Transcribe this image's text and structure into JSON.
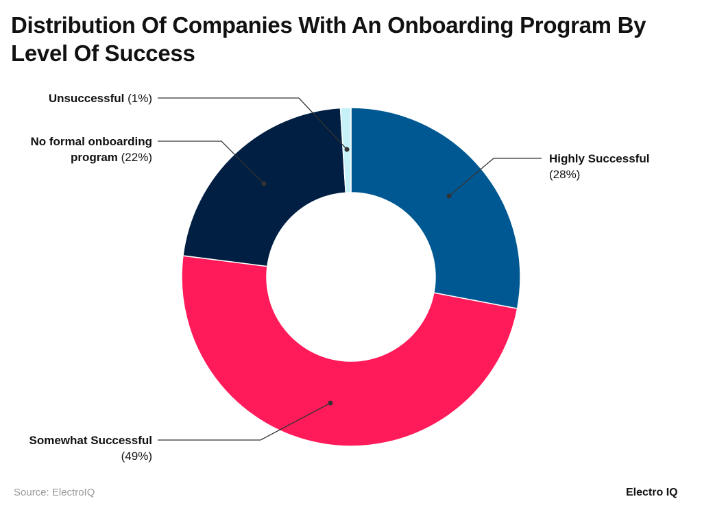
{
  "chart_data": {
    "type": "pie",
    "donut": true,
    "title": "Distribution Of Companies With An Onboarding Program By Level Of Success",
    "slices": [
      {
        "label": "Highly Successful",
        "value": 28,
        "value_label": "(28%)",
        "color": "#005892"
      },
      {
        "label": "Somewhat Successful",
        "value": 49,
        "value_label": "(49%)",
        "color": "#FF1B5A"
      },
      {
        "label": "No formal onboarding program",
        "value": 22,
        "value_label": "(22%)",
        "color": "#001F42"
      },
      {
        "label": "Unsuccessful",
        "value": 1,
        "value_label": "(1%)",
        "color": "#C6F1F9"
      }
    ],
    "legend": "none"
  },
  "source": "Source: ElectroIQ",
  "logo": "Electro IQ"
}
